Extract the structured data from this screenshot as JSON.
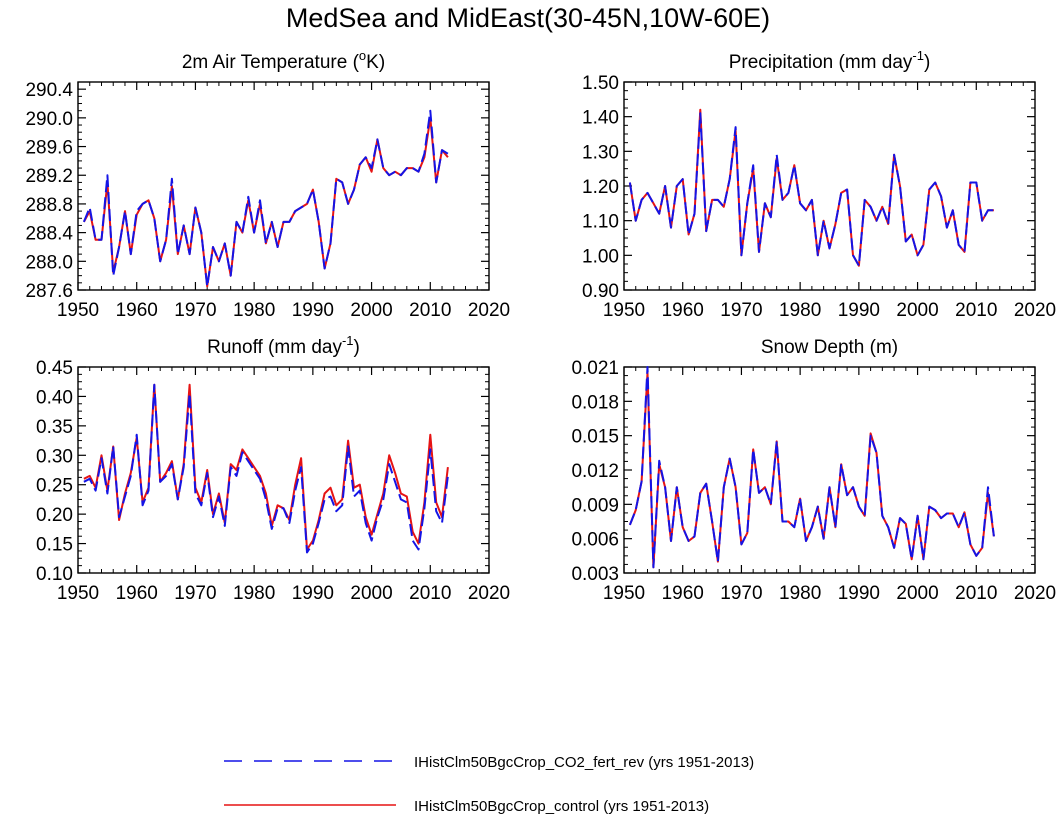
{
  "title": "MedSea and MidEast(30-45N,10W-60E)",
  "legend": [
    {
      "label": "IHistClm50BgcCrop_CO2_fert_rev (yrs 1951-2013)",
      "color": "#1414e6",
      "dash": "dashed"
    },
    {
      "label": "IHistClm50BgcCrop_control (yrs 1951-2013)",
      "color": "#e61414",
      "dash": "solid"
    }
  ],
  "chart_data": [
    {
      "type": "line",
      "title": "2m Air Temperature (",
      "title_sup": "o",
      "title_tail": "K)",
      "xlim": [
        1950,
        2020
      ],
      "xticks": [
        "1950",
        "1960",
        "1970",
        "1980",
        "1990",
        "2000",
        "2010",
        "2020"
      ],
      "ylim": [
        287.6,
        290.5
      ],
      "yticks": [
        "287.6",
        "288.0",
        "288.4",
        "288.8",
        "289.2",
        "289.6",
        "290.0",
        "290.4"
      ],
      "x_start": 1951,
      "series": [
        {
          "name": "IHistClm50BgcCrop_CO2_fert_rev",
          "color": "#1414e6",
          "dash": "dashed",
          "values": [
            288.55,
            288.75,
            288.3,
            288.3,
            289.2,
            287.8,
            288.2,
            288.7,
            288.1,
            288.7,
            288.8,
            288.85,
            288.6,
            288.0,
            288.3,
            289.15,
            288.1,
            288.5,
            288.1,
            288.75,
            288.4,
            287.65,
            288.2,
            288.0,
            288.25,
            287.8,
            288.55,
            288.4,
            288.9,
            288.4,
            288.85,
            288.25,
            288.55,
            288.2,
            288.55,
            288.55,
            288.7,
            288.75,
            288.8,
            289.0,
            288.55,
            287.9,
            288.25,
            289.15,
            289.1,
            288.8,
            289.0,
            289.35,
            289.45,
            289.3,
            289.7,
            289.3,
            289.2,
            289.25,
            289.2,
            289.3,
            289.3,
            289.25,
            289.5,
            290.1,
            289.1,
            289.55,
            289.5
          ]
        },
        {
          "name": "IHistClm50BgcCrop_control",
          "color": "#e61414",
          "dash": "solid",
          "values": [
            288.55,
            288.7,
            288.3,
            288.3,
            289.1,
            287.85,
            288.2,
            288.7,
            288.1,
            288.65,
            288.8,
            288.85,
            288.6,
            288.0,
            288.3,
            289.05,
            288.1,
            288.5,
            288.1,
            288.75,
            288.4,
            287.65,
            288.2,
            288.0,
            288.25,
            287.8,
            288.55,
            288.4,
            288.85,
            288.4,
            288.8,
            288.25,
            288.55,
            288.2,
            288.55,
            288.55,
            288.7,
            288.75,
            288.8,
            289.0,
            288.55,
            287.9,
            288.25,
            289.15,
            289.1,
            288.8,
            289.0,
            289.35,
            289.45,
            289.25,
            289.7,
            289.3,
            289.2,
            289.25,
            289.2,
            289.3,
            289.3,
            289.25,
            289.45,
            290.0,
            289.1,
            289.55,
            289.45
          ]
        }
      ]
    },
    {
      "type": "line",
      "title": "Precipitation (mm day",
      "title_sup": "-1",
      "title_tail": ")",
      "xlim": [
        1950,
        2020
      ],
      "xticks": [
        "1950",
        "1960",
        "1970",
        "1980",
        "1990",
        "2000",
        "2010",
        "2020"
      ],
      "ylim": [
        0.9,
        1.5
      ],
      "yticks": [
        "0.90",
        "1.00",
        "1.10",
        "1.20",
        "1.30",
        "1.40",
        "1.50"
      ],
      "x_start": 1951,
      "series": [
        {
          "name": "IHistClm50BgcCrop_CO2_fert_rev",
          "color": "#1414e6",
          "dash": "dashed",
          "values": [
            1.21,
            1.1,
            1.16,
            1.18,
            1.15,
            1.12,
            1.2,
            1.08,
            1.2,
            1.22,
            1.06,
            1.12,
            1.41,
            1.07,
            1.16,
            1.16,
            1.14,
            1.22,
            1.37,
            1.0,
            1.15,
            1.26,
            1.01,
            1.15,
            1.11,
            1.29,
            1.16,
            1.18,
            1.26,
            1.15,
            1.13,
            1.16,
            1.0,
            1.1,
            1.02,
            1.09,
            1.18,
            1.19,
            1.0,
            0.97,
            1.16,
            1.14,
            1.1,
            1.14,
            1.09,
            1.29,
            1.2,
            1.04,
            1.06,
            1.0,
            1.03,
            1.19,
            1.21,
            1.17,
            1.08,
            1.13,
            1.03,
            1.01,
            1.21,
            1.21,
            1.1,
            1.13,
            1.13
          ]
        },
        {
          "name": "IHistClm50BgcCrop_control",
          "color": "#e61414",
          "dash": "solid",
          "values": [
            1.21,
            1.1,
            1.16,
            1.18,
            1.15,
            1.12,
            1.2,
            1.08,
            1.2,
            1.22,
            1.06,
            1.12,
            1.42,
            1.07,
            1.16,
            1.16,
            1.14,
            1.22,
            1.36,
            1.0,
            1.15,
            1.25,
            1.01,
            1.15,
            1.11,
            1.28,
            1.16,
            1.18,
            1.26,
            1.15,
            1.13,
            1.16,
            1.0,
            1.1,
            1.02,
            1.09,
            1.18,
            1.19,
            1.0,
            0.97,
            1.16,
            1.14,
            1.1,
            1.14,
            1.09,
            1.29,
            1.2,
            1.04,
            1.06,
            1.0,
            1.03,
            1.19,
            1.21,
            1.17,
            1.08,
            1.13,
            1.03,
            1.01,
            1.21,
            1.21,
            1.1,
            1.13,
            1.13
          ]
        }
      ]
    },
    {
      "type": "line",
      "title": "Runoff (mm day",
      "title_sup": "-1",
      "title_tail": ")",
      "xlim": [
        1950,
        2020
      ],
      "xticks": [
        "1950",
        "1960",
        "1970",
        "1980",
        "1990",
        "2000",
        "2010",
        "2020"
      ],
      "ylim": [
        0.1,
        0.45
      ],
      "yticks": [
        "0.10",
        "0.15",
        "0.20",
        "0.25",
        "0.30",
        "0.35",
        "0.40",
        "0.45"
      ],
      "x_start": 1951,
      "series": [
        {
          "name": "IHistClm50BgcCrop_CO2_fert_rev",
          "color": "#1414e6",
          "dash": "dashed",
          "values": [
            0.255,
            0.26,
            0.24,
            0.295,
            0.235,
            0.315,
            0.195,
            0.23,
            0.265,
            0.335,
            0.215,
            0.24,
            0.42,
            0.255,
            0.265,
            0.285,
            0.225,
            0.28,
            0.405,
            0.235,
            0.215,
            0.27,
            0.195,
            0.23,
            0.18,
            0.28,
            0.265,
            0.305,
            0.29,
            0.275,
            0.26,
            0.225,
            0.175,
            0.21,
            0.21,
            0.185,
            0.24,
            0.28,
            0.135,
            0.15,
            0.185,
            0.225,
            0.23,
            0.205,
            0.215,
            0.315,
            0.23,
            0.24,
            0.185,
            0.155,
            0.195,
            0.225,
            0.285,
            0.255,
            0.225,
            0.22,
            0.155,
            0.14,
            0.21,
            0.31,
            0.205,
            0.185,
            0.265
          ]
        },
        {
          "name": "IHistClm50BgcCrop_control",
          "color": "#e61414",
          "dash": "solid",
          "values": [
            0.26,
            0.265,
            0.245,
            0.3,
            0.24,
            0.315,
            0.19,
            0.235,
            0.27,
            0.33,
            0.22,
            0.245,
            0.42,
            0.255,
            0.27,
            0.29,
            0.225,
            0.285,
            0.42,
            0.245,
            0.22,
            0.275,
            0.2,
            0.235,
            0.185,
            0.285,
            0.275,
            0.31,
            0.295,
            0.28,
            0.265,
            0.235,
            0.18,
            0.215,
            0.21,
            0.19,
            0.25,
            0.295,
            0.14,
            0.155,
            0.19,
            0.235,
            0.245,
            0.215,
            0.225,
            0.325,
            0.245,
            0.25,
            0.195,
            0.165,
            0.2,
            0.235,
            0.3,
            0.27,
            0.235,
            0.23,
            0.17,
            0.15,
            0.22,
            0.335,
            0.22,
            0.195,
            0.28
          ]
        }
      ]
    },
    {
      "type": "line",
      "title": "Snow Depth (m)",
      "title_sup": "",
      "title_tail": "",
      "xlim": [
        1950,
        2020
      ],
      "xticks": [
        "1950",
        "1960",
        "1970",
        "1980",
        "1990",
        "2000",
        "2010",
        "2020"
      ],
      "ylim": [
        0.003,
        0.021
      ],
      "yticks": [
        "0.003",
        "0.006",
        "0.009",
        "0.012",
        "0.015",
        "0.018",
        "0.021"
      ],
      "x_start": 1951,
      "series": [
        {
          "name": "IHistClm50BgcCrop_CO2_fert_rev",
          "color": "#1414e6",
          "dash": "dashed",
          "values": [
            0.0072,
            0.0085,
            0.011,
            0.021,
            0.0035,
            0.0128,
            0.0105,
            0.0058,
            0.0105,
            0.007,
            0.0058,
            0.0062,
            0.01,
            0.0108,
            0.0075,
            0.004,
            0.0105,
            0.013,
            0.0105,
            0.0055,
            0.0065,
            0.0138,
            0.01,
            0.0105,
            0.009,
            0.0145,
            0.0075,
            0.0075,
            0.007,
            0.0095,
            0.0058,
            0.007,
            0.0088,
            0.006,
            0.0105,
            0.007,
            0.0125,
            0.0098,
            0.0105,
            0.0088,
            0.008,
            0.015,
            0.0135,
            0.008,
            0.007,
            0.0052,
            0.0078,
            0.0073,
            0.0042,
            0.008,
            0.0042,
            0.0088,
            0.0085,
            0.0078,
            0.0082,
            0.0082,
            0.007,
            0.0083,
            0.0055,
            0.0045,
            0.0052,
            0.0105,
            0.0062
          ]
        },
        {
          "name": "IHistClm50BgcCrop_control",
          "color": "#e61414",
          "dash": "solid",
          "values": [
            0.0072,
            0.0085,
            0.011,
            0.0205,
            0.0035,
            0.0125,
            0.0105,
            0.0058,
            0.0105,
            0.007,
            0.0058,
            0.0062,
            0.01,
            0.0108,
            0.0075,
            0.004,
            0.0105,
            0.013,
            0.0105,
            0.0055,
            0.0065,
            0.0138,
            0.01,
            0.0105,
            0.009,
            0.0145,
            0.0075,
            0.0075,
            0.007,
            0.0095,
            0.0058,
            0.007,
            0.0088,
            0.006,
            0.0105,
            0.007,
            0.0125,
            0.0098,
            0.0105,
            0.0088,
            0.008,
            0.0152,
            0.0135,
            0.008,
            0.007,
            0.0052,
            0.0078,
            0.0073,
            0.0042,
            0.008,
            0.0042,
            0.0088,
            0.0085,
            0.0078,
            0.0082,
            0.0082,
            0.007,
            0.0083,
            0.0055,
            0.0045,
            0.0052,
            0.01,
            0.0062
          ]
        }
      ]
    }
  ]
}
